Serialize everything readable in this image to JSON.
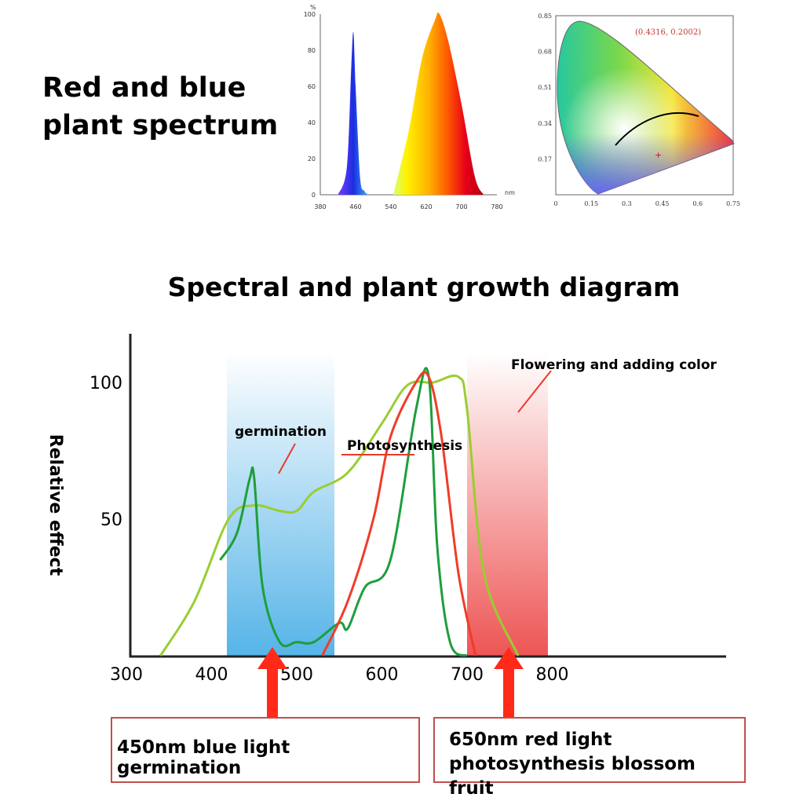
{
  "header": {
    "title_lines": [
      "Red and blue",
      "plant spectrum"
    ]
  },
  "spectrum_chart": {
    "y_unit": "%",
    "x_unit": "nm",
    "y_ticks": [
      "0",
      "20",
      "40",
      "60",
      "80",
      "100"
    ],
    "x_ticks": [
      "380",
      "460",
      "540",
      "620",
      "700",
      "780"
    ]
  },
  "cie_chart": {
    "annotation": "(0.4316, 0.2002)",
    "y_ticks": [
      "0.17",
      "0.34",
      "0.51",
      "0.68",
      "0.85"
    ],
    "x_ticks": [
      "0",
      "0.15",
      "0.3",
      "0.45",
      "0.6",
      "0.75"
    ]
  },
  "main_chart": {
    "title": "Spectral and plant growth diagram",
    "ylabel": "Relative effect",
    "y_ticks": [
      "50",
      "100"
    ],
    "x_ticks": [
      "300",
      "400",
      "500",
      "600",
      "700",
      "800"
    ],
    "annotations": {
      "germination": "germination",
      "photosynthesis": "Photosynthesis",
      "flowering": "Flowering and adding color"
    },
    "colors": {
      "light_green": "#9acd32",
      "dark_green": "#1e9e3c",
      "red": "#f03c28",
      "blue_band": "#5bb8e8",
      "red_band": "#f08080",
      "arrow": "#ff2a1a"
    }
  },
  "callouts": {
    "blue": "450nm blue light germination",
    "red_lines": [
      "650nm red light",
      "photosynthesis blossom fruit"
    ]
  },
  "chart_data": [
    {
      "type": "area",
      "title": "",
      "xlabel": "nm",
      "ylabel": "%",
      "xlim": [
        380,
        780
      ],
      "ylim": [
        0,
        100
      ],
      "series": [
        {
          "x": [
            420,
            440,
            450,
            455,
            460,
            470,
            480,
            490
          ],
          "values": [
            0,
            15,
            70,
            90,
            60,
            10,
            2,
            0
          ]
        },
        {
          "x": [
            545,
            580,
            610,
            640,
            650,
            670,
            700,
            730,
            750
          ],
          "values": [
            0,
            35,
            75,
            97,
            100,
            85,
            50,
            10,
            0
          ]
        }
      ]
    },
    {
      "type": "scatter",
      "title": "",
      "xlim": [
        0,
        0.75
      ],
      "ylim": [
        0,
        0.85
      ],
      "series": [
        {
          "x": [
            0.4316
          ],
          "values": [
            0.2002
          ]
        }
      ]
    },
    {
      "type": "line",
      "title": "Spectral and plant growth diagram",
      "xlabel": "",
      "ylabel": "Relative effect",
      "xlim": [
        300,
        820
      ],
      "ylim": [
        0,
        110
      ],
      "series": [
        {
          "x": [
            340,
            380,
            420,
            450,
            480,
            500,
            520,
            560,
            600,
            630,
            660,
            690,
            700,
            720,
            760
          ],
          "values": [
            0,
            20,
            50,
            55,
            53,
            53,
            60,
            67,
            85,
            99,
            100,
            102,
            90,
            30,
            0
          ]
        },
        {
          "x": [
            410,
            430,
            445,
            450,
            460,
            480,
            500,
            520,
            550,
            560,
            580,
            610,
            640,
            655,
            665,
            680,
            700
          ],
          "values": [
            35,
            45,
            65,
            65,
            25,
            5,
            5,
            5,
            12,
            10,
            25,
            35,
            90,
            102,
            40,
            5,
            0
          ]
        },
        {
          "x": [
            530,
            560,
            590,
            610,
            640,
            655,
            670,
            690,
            710
          ],
          "values": [
            0,
            20,
            50,
            80,
            100,
            102,
            80,
            30,
            0
          ]
        }
      ]
    }
  ]
}
